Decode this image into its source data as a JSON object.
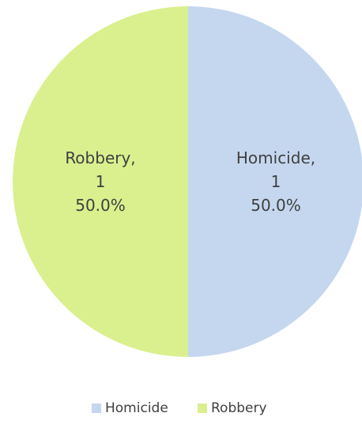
{
  "chart_data": {
    "type": "pie",
    "categories": [
      "Homicide",
      "Robbery"
    ],
    "values": [
      1,
      1
    ],
    "percentages": [
      "50.0%",
      "50.0%"
    ],
    "colors": [
      "#c5d7ef",
      "#daf08e"
    ],
    "legend": {
      "position": "bottom",
      "entries": [
        "Homicide",
        "Robbery"
      ]
    },
    "data_labels": [
      {
        "category": "Homicide,",
        "value": "1",
        "percent": "50.0%"
      },
      {
        "category": "Robbery,",
        "value": "1",
        "percent": "50.0%"
      }
    ]
  }
}
